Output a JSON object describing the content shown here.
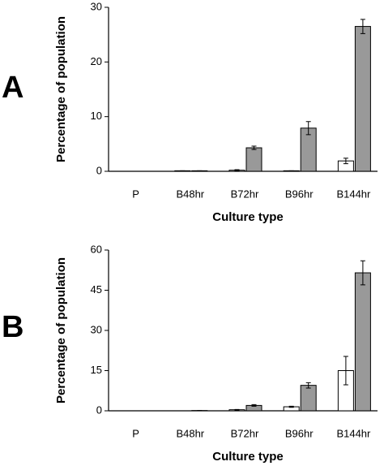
{
  "chart_data": [
    {
      "type": "bar",
      "panel_label": "A",
      "ylabel": "Percentage of population",
      "xlabel": "Culture type",
      "categories": [
        "P",
        "B48hr",
        "B72hr",
        "B96hr",
        "B144hr"
      ],
      "series": [
        {
          "color": "#ffffff",
          "values": [
            0,
            0.1,
            0.2,
            0.1,
            1.9
          ],
          "errors": [
            0,
            0,
            0.1,
            0,
            0.5
          ]
        },
        {
          "color": "#999999",
          "values": [
            0,
            0.1,
            4.3,
            7.9,
            26.5
          ],
          "errors": [
            0,
            0,
            0.3,
            1.2,
            1.3
          ]
        }
      ],
      "ylim": [
        0,
        30
      ],
      "yticks": [
        0,
        10,
        20,
        30
      ]
    },
    {
      "type": "bar",
      "panel_label": "B",
      "ylabel": "Percentage of population",
      "xlabel": "Culture type",
      "categories": [
        "P",
        "B48hr",
        "B72hr",
        "B96hr",
        "B144hr"
      ],
      "series": [
        {
          "color": "#ffffff",
          "values": [
            0,
            0,
            0.4,
            1.5,
            15
          ],
          "errors": [
            0,
            0,
            0.1,
            0.2,
            5.3
          ]
        },
        {
          "color": "#999999",
          "values": [
            0,
            0.1,
            2.0,
            9.5,
            51.5
          ],
          "errors": [
            0,
            0,
            0.3,
            1.0,
            4.5
          ]
        }
      ],
      "ylim": [
        0,
        60
      ],
      "yticks": [
        0,
        15,
        30,
        45,
        60
      ]
    }
  ]
}
